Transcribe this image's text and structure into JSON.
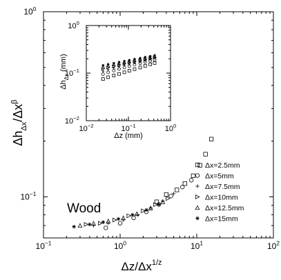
{
  "chart_data": [
    {
      "id": "main",
      "type": "scatter",
      "xscale": "log",
      "yscale": "log",
      "xlim": [
        0.1,
        100
      ],
      "ylim": [
        0.06,
        1
      ],
      "xlabel": "Δz/Δx",
      "xlabel_sup": "1/z",
      "ylabel": "Δh",
      "ylabel_sub": "Δx",
      "ylabel_mid": "/Δx",
      "ylabel_sup": "β",
      "xticks": [
        {
          "v": 0.1,
          "base": "10",
          "exp": "−1"
        },
        {
          "v": 1,
          "base": "10",
          "exp": "0"
        },
        {
          "v": 10,
          "base": "10",
          "exp": "1"
        },
        {
          "v": 100,
          "base": "10",
          "exp": "2"
        }
      ],
      "yticks": [
        {
          "v": 0.1,
          "base": "10",
          "exp": "−1"
        },
        {
          "v": 1,
          "base": "10",
          "exp": "0"
        }
      ],
      "annotation": "Wood",
      "legend_position": "lower-right",
      "series": [
        {
          "name": "Δx=2.5mm",
          "marker": "square",
          "points": [
            [
              5.5,
              0.109
            ],
            [
              7.0,
              0.118
            ],
            [
              9.0,
              0.13
            ],
            [
              11.0,
              0.148
            ],
            [
              13.0,
              0.17
            ],
            [
              15.5,
              0.205
            ],
            [
              4.0,
              0.103
            ],
            [
              3.0,
              0.094
            ]
          ]
        },
        {
          "name": "Δx=5mm",
          "marker": "circle",
          "points": [
            [
              0.65,
              0.068
            ],
            [
              1.0,
              0.072
            ],
            [
              1.5,
              0.077
            ],
            [
              2.2,
              0.083
            ],
            [
              3.2,
              0.091
            ],
            [
              4.6,
              0.101
            ],
            [
              6.5,
              0.113
            ],
            [
              8.5,
              0.123
            ]
          ]
        },
        {
          "name": "Δx=7.5mm",
          "marker": "plus",
          "points": [
            [
              0.45,
              0.07
            ],
            [
              0.7,
              0.072
            ],
            [
              1.1,
              0.075
            ],
            [
              1.7,
              0.08
            ],
            [
              2.5,
              0.087
            ],
            [
              3.6,
              0.095
            ],
            [
              5.0,
              0.104
            ]
          ]
        },
        {
          "name": "Δx=10mm",
          "marker": "triangle-right",
          "points": [
            [
              0.36,
              0.071
            ],
            [
              0.55,
              0.072
            ],
            [
              0.85,
              0.075
            ],
            [
              1.3,
              0.079
            ],
            [
              2.0,
              0.084
            ],
            [
              2.9,
              0.091
            ],
            [
              4.2,
              0.098
            ]
          ]
        },
        {
          "name": "Δx=12.5mm",
          "marker": "triangle-up",
          "points": [
            [
              0.3,
              0.07
            ],
            [
              0.45,
              0.072
            ],
            [
              0.7,
              0.074
            ],
            [
              1.1,
              0.077
            ],
            [
              1.65,
              0.081
            ],
            [
              2.5,
              0.087
            ],
            [
              3.6,
              0.094
            ]
          ]
        },
        {
          "name": "Δx=15mm",
          "marker": "star",
          "points": [
            [
              0.25,
              0.069
            ],
            [
              0.4,
              0.071
            ],
            [
              0.6,
              0.073
            ],
            [
              0.95,
              0.076
            ],
            [
              1.45,
              0.08
            ],
            [
              2.2,
              0.085
            ],
            [
              3.2,
              0.091
            ]
          ]
        }
      ]
    },
    {
      "id": "inset",
      "type": "scatter",
      "xscale": "log",
      "yscale": "log",
      "xlim": [
        0.01,
        1
      ],
      "ylim": [
        0.01,
        1
      ],
      "xlabel": "Δz (mm)",
      "ylabel": "Δh",
      "ylabel_sub": "Δx",
      "ylabel_unit": " (mm)",
      "xticks": [
        {
          "v": 0.01,
          "base": "10",
          "exp": "−2"
        },
        {
          "v": 0.1,
          "base": "10",
          "exp": "−1"
        },
        {
          "v": 1,
          "base": "10",
          "exp": "0"
        }
      ],
      "yticks": [
        {
          "v": 0.01,
          "base": "10",
          "exp": "−2"
        },
        {
          "v": 0.1,
          "base": "10",
          "exp": "−1"
        },
        {
          "v": 1,
          "base": "10",
          "exp": "0"
        }
      ],
      "x_values": [
        0.025,
        0.033,
        0.045,
        0.06,
        0.08,
        0.105,
        0.14,
        0.19,
        0.25,
        0.33,
        0.42
      ],
      "series": [
        {
          "name": "Δx=2.5mm",
          "marker": "square",
          "y": [
            0.075,
            0.082,
            0.089,
            0.096,
            0.104,
            0.112,
            0.121,
            0.131,
            0.142,
            0.153,
            0.163
          ]
        },
        {
          "name": "Δx=5mm",
          "marker": "circle",
          "y": [
            0.095,
            0.104,
            0.113,
            0.122,
            0.131,
            0.14,
            0.15,
            0.16,
            0.171,
            0.181,
            0.191
          ]
        },
        {
          "name": "Δx=7.5mm",
          "marker": "plus",
          "y": [
            0.11,
            0.119,
            0.128,
            0.137,
            0.146,
            0.155,
            0.164,
            0.174,
            0.184,
            0.194,
            0.204
          ]
        },
        {
          "name": "Δx=10mm",
          "marker": "triangle-right",
          "y": [
            0.123,
            0.131,
            0.139,
            0.148,
            0.157,
            0.166,
            0.175,
            0.185,
            0.195,
            0.205,
            0.215
          ]
        },
        {
          "name": "Δx=12.5mm",
          "marker": "triangle-up",
          "y": [
            0.135,
            0.143,
            0.151,
            0.16,
            0.168,
            0.177,
            0.186,
            0.196,
            0.206,
            0.216,
            0.226
          ]
        },
        {
          "name": "Δx=15mm",
          "marker": "star",
          "y": [
            0.145,
            0.153,
            0.161,
            0.17,
            0.178,
            0.187,
            0.196,
            0.206,
            0.216,
            0.226,
            0.236
          ]
        }
      ]
    }
  ]
}
